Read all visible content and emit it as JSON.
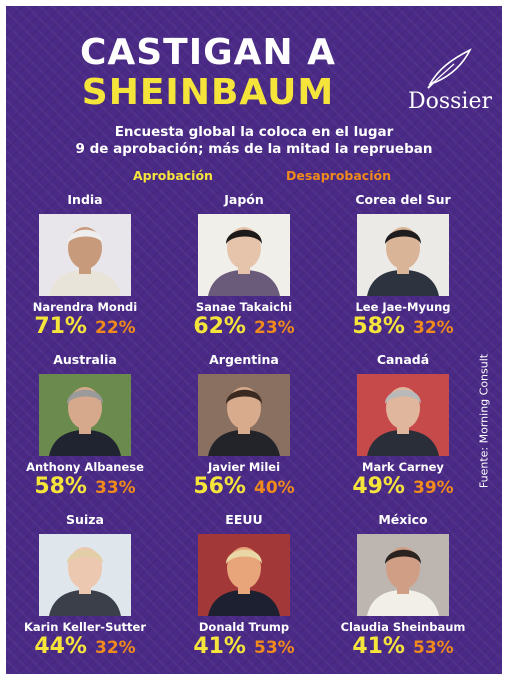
{
  "title": {
    "line1": "CASTIGAN A",
    "line2": "SHEINBAUM"
  },
  "logo": {
    "text": "Dossier"
  },
  "subtitle": {
    "line1": "Encuesta global  la coloca en el lugar",
    "line2": "9 de aprobación; más de la mitad la reprueban"
  },
  "legend": {
    "approval": "Aprobación",
    "disapproval": "Desaprobación"
  },
  "source": "Fuente: Morning Consult",
  "colors": {
    "background": "#4a2a86",
    "approval": "#f5e43a",
    "disapproval": "#f08a1c",
    "title": "#ffffff"
  },
  "leaders": [
    {
      "country": "India",
      "name": "Narendra Mondi",
      "approval": "71%",
      "disapproval": "22%"
    },
    {
      "country": "Japón",
      "name": "Sanae Takaichi",
      "approval": "62%",
      "disapproval": "23%"
    },
    {
      "country": "Corea del Sur",
      "name": "Lee Jae-Myung",
      "approval": "58%",
      "disapproval": "32%"
    },
    {
      "country": "Australia",
      "name": "Anthony Albanese",
      "approval": "58%",
      "disapproval": "33%"
    },
    {
      "country": "Argentina",
      "name": "Javier Milei",
      "approval": "56%",
      "disapproval": "40%"
    },
    {
      "country": "Canadá",
      "name": "Mark Carney",
      "approval": "49%",
      "disapproval": "39%"
    },
    {
      "country": "Suiza",
      "name": "Karin Keller-Sutter",
      "approval": "44%",
      "disapproval": "32%"
    },
    {
      "country": "EEUU",
      "name": "Donald Trump",
      "approval": "41%",
      "disapproval": "53%"
    },
    {
      "country": "México",
      "name": "Claudia Sheinbaum",
      "approval": "41%",
      "disapproval": "53%"
    }
  ]
}
